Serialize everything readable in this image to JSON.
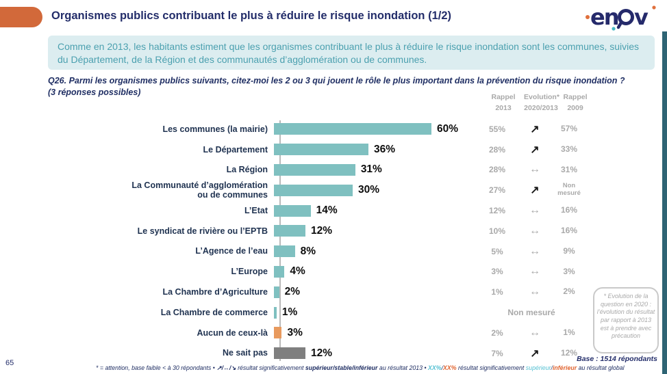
{
  "header": {
    "title": "Organismes publics contribuant le plus à réduire le risque inondation (1/2)",
    "logo_text": "enov"
  },
  "summary": {
    "text": "Comme en 2013, les habitants estiment que les organismes contribuant le plus à réduire le risque inondation sont les communes, suivies du Département, de la Région et des communautés d’agglomération ou de communes."
  },
  "question": {
    "text": "Q26. Parmi les organismes publics suivants, citez-moi les 2 ou 3 qui jouent le rôle le plus important dans la prévention du risque inondation ?\n(3 réponses possibles)"
  },
  "columns": {
    "rappel_2013": "Rappel\n2013",
    "evolution": "Evolution*\n2020/2013",
    "rappel_2009": "Rappel\n2009"
  },
  "icons": {
    "up": "↗",
    "stable": "↔"
  },
  "colors": {
    "accent_orange": "#d2693a",
    "navy": "#232d6a",
    "teal": "#7fc0c0",
    "orange": "#e89a5e",
    "gray": "#7f7f7f",
    "muted_gray": "#a9a9a9",
    "summary_bg": "#dcedf0",
    "summary_text": "#4ba0af",
    "right_strip": "#2e6474",
    "footnote_teal": "#56c1d3",
    "footnote_orange": "#e0632f"
  },
  "chart_data": {
    "type": "bar",
    "orientation": "horizontal",
    "unit": "%",
    "value_range": [
      0,
      60
    ],
    "rows": [
      {
        "label": "Les communes (la mairie)",
        "value": 60,
        "value_label": "60%",
        "color": "teal",
        "rappel_2013": "55%",
        "evolution": "up",
        "rappel_2009": "57%"
      },
      {
        "label": "Le Département",
        "value": 36,
        "value_label": "36%",
        "color": "teal",
        "rappel_2013": "28%",
        "evolution": "up",
        "rappel_2009": "33%"
      },
      {
        "label": "La Région",
        "value": 31,
        "value_label": "31%",
        "color": "teal",
        "rappel_2013": "28%",
        "evolution": "stable",
        "rappel_2009": "31%"
      },
      {
        "label": "La Communauté d’agglomération\nou de communes",
        "value": 30,
        "value_label": "30%",
        "color": "teal",
        "rappel_2013": "27%",
        "evolution": "up",
        "rappel_2009": "Non\nmesuré"
      },
      {
        "label": "L’Etat",
        "value": 14,
        "value_label": "14%",
        "color": "teal",
        "rappel_2013": "12%",
        "evolution": "stable",
        "rappel_2009": "16%"
      },
      {
        "label": "Le syndicat de rivière ou l’EPTB",
        "value": 12,
        "value_label": "12%",
        "color": "teal",
        "rappel_2013": "10%",
        "evolution": "stable",
        "rappel_2009": "16%"
      },
      {
        "label": "L’Agence de l’eau",
        "value": 8,
        "value_label": "8%",
        "color": "teal",
        "rappel_2013": "5%",
        "evolution": "stable",
        "rappel_2009": "9%"
      },
      {
        "label": "L’Europe",
        "value": 4,
        "value_label": "4%",
        "color": "teal",
        "rappel_2013": "3%",
        "evolution": "stable",
        "rappel_2009": "3%"
      },
      {
        "label": "La Chambre d’Agriculture",
        "value": 2,
        "value_label": "2%",
        "color": "teal",
        "rappel_2013": "1%",
        "evolution": "stable",
        "rappel_2009": "2%"
      },
      {
        "label": "La Chambre de commerce",
        "value": 1,
        "value_label": "1%",
        "color": "teal",
        "not_measured": "Non mesuré"
      },
      {
        "label": "Aucun de ceux-là",
        "value": 3,
        "value_label": "3%",
        "color": "orange",
        "rappel_2013": "2%",
        "evolution": "stable",
        "rappel_2009": "1%"
      },
      {
        "label": "Ne sait pas",
        "value": 12,
        "value_label": "12%",
        "color": "gray",
        "rappel_2013": "7%",
        "evolution": "up",
        "rappel_2009": "12%"
      }
    ]
  },
  "note_box": {
    "text": "* Evolution de la question en 2020 : l’évolution du résultat par rapport à 2013 est à prendre avec précaution"
  },
  "base_label": "Base : 1514 répondants",
  "footer": {
    "page": "65",
    "note_parts": [
      {
        "t": "* = attention, base faible < à 30 répondants • ",
        "style": "plain"
      },
      {
        "t": "↗/↔/↘",
        "style": "bold"
      },
      {
        "t": "  résultat significativement ",
        "style": "plain"
      },
      {
        "t": "supérieur/stable/inférieur",
        "style": "bold"
      },
      {
        "t": " au résultat 2013 • ",
        "style": "plain"
      },
      {
        "t": "XX%",
        "style": "teal-bold"
      },
      {
        "t": "/",
        "style": "plain"
      },
      {
        "t": "XX%",
        "style": "orange-bold"
      },
      {
        "t": " résultat significativement ",
        "style": "plain"
      },
      {
        "t": "supérieur",
        "style": "teal"
      },
      {
        "t": "/",
        "style": "plain"
      },
      {
        "t": "inférieur",
        "style": "orange"
      },
      {
        "t": " au résultat global",
        "style": "plain"
      }
    ]
  }
}
